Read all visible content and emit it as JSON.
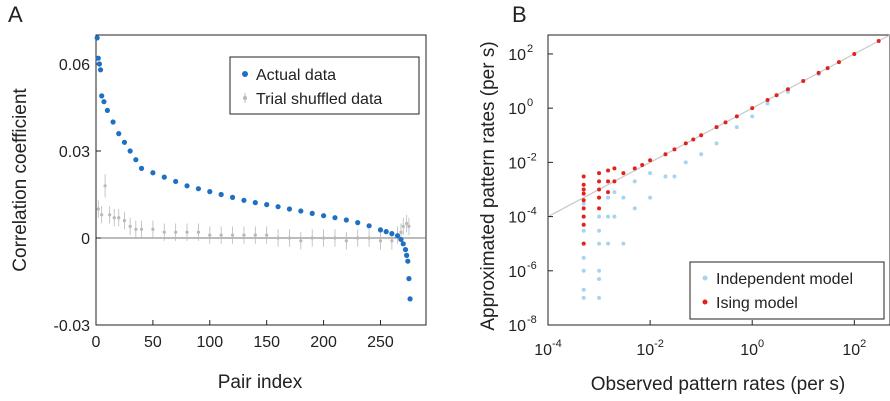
{
  "chart_data": [
    {
      "panel": "A",
      "type": "scatter",
      "xlabel": "Pair index",
      "ylabel": "Correlation coefficient",
      "xlim": [
        0,
        290
      ],
      "ylim": [
        -0.03,
        0.07
      ],
      "xticks": [
        0,
        50,
        100,
        150,
        200,
        250
      ],
      "yticks": [
        -0.03,
        0,
        0.03,
        0.06
      ],
      "ytick_labels": [
        "-0.03",
        "0",
        "0.03",
        "0.06"
      ],
      "xtick_labels": [
        "0",
        "50",
        "100",
        "150",
        "200",
        "250"
      ],
      "legend_position": "top-right",
      "series": [
        {
          "name": "Actual data",
          "color": "#1f6fc2",
          "x": [
            1,
            2,
            3,
            4,
            5,
            7,
            10,
            15,
            20,
            25,
            30,
            35,
            40,
            50,
            60,
            70,
            80,
            90,
            100,
            110,
            120,
            130,
            140,
            150,
            160,
            170,
            180,
            190,
            200,
            210,
            220,
            230,
            240,
            250,
            255,
            260,
            265,
            268,
            270,
            272,
            273,
            274,
            275,
            276
          ],
          "y": [
            0.069,
            0.062,
            0.06,
            0.058,
            0.049,
            0.047,
            0.044,
            0.04,
            0.036,
            0.033,
            0.03,
            0.027,
            0.024,
            0.0225,
            0.021,
            0.0195,
            0.018,
            0.017,
            0.016,
            0.015,
            0.014,
            0.013,
            0.0122,
            0.0115,
            0.0108,
            0.01,
            0.0093,
            0.0085,
            0.0077,
            0.007,
            0.0062,
            0.0053,
            0.0042,
            0.0028,
            0.0022,
            0.0015,
            0.0008,
            -0.0005,
            -0.002,
            -0.004,
            -0.006,
            -0.008,
            -0.014,
            -0.021
          ]
        },
        {
          "name": "Trial shuffled data",
          "color": "#b8b8b8",
          "x": [
            2,
            5,
            8,
            12,
            16,
            20,
            25,
            30,
            35,
            40,
            50,
            60,
            70,
            80,
            90,
            100,
            110,
            120,
            130,
            140,
            150,
            160,
            170,
            180,
            190,
            200,
            210,
            220,
            230,
            240,
            250,
            260,
            265,
            268,
            270,
            273,
            275
          ],
          "y": [
            0.01,
            0.008,
            0.018,
            0.008,
            0.007,
            0.007,
            0.006,
            0.004,
            0.003,
            0.003,
            0.003,
            0.002,
            0.002,
            0.002,
            0.002,
            0.001,
            0.001,
            0.001,
            0.001,
            0.001,
            0.001,
            0.0,
            0.0,
            -0.001,
            0.0,
            0.0,
            0.0,
            -0.001,
            0.0,
            0.0,
            -0.001,
            -0.001,
            0.001,
            0.002,
            0.004,
            0.005,
            0.004
          ],
          "err": [
            0.003,
            0.003,
            0.004,
            0.003,
            0.003,
            0.003,
            0.003,
            0.003,
            0.003,
            0.003,
            0.003,
            0.003,
            0.003,
            0.003,
            0.003,
            0.003,
            0.003,
            0.003,
            0.003,
            0.003,
            0.003,
            0.003,
            0.003,
            0.003,
            0.003,
            0.003,
            0.003,
            0.003,
            0.003,
            0.003,
            0.003,
            0.003,
            0.003,
            0.003,
            0.003,
            0.003,
            0.003
          ]
        }
      ]
    },
    {
      "panel": "B",
      "type": "scatter",
      "xlabel": "Observed pattern rates (per s)",
      "ylabel": "Approximated pattern rates (per s)",
      "xscale": "log",
      "yscale": "log",
      "xlim": [
        0.0001,
        500
      ],
      "ylim": [
        1e-08,
        500
      ],
      "xticks": [
        0.0001,
        0.01,
        1,
        100
      ],
      "yticks": [
        1e-08,
        1e-06,
        0.0001,
        0.01,
        1,
        100
      ],
      "tick_base": "10",
      "xtick_exponents": [
        "-4",
        "-2",
        "0",
        "2"
      ],
      "ytick_exponents": [
        "-8",
        "-6",
        "-4",
        "-2",
        "0",
        "2"
      ],
      "legend_position": "bottom-right",
      "reference_line": "y = x",
      "series": [
        {
          "name": "Independent model",
          "color": "#a8d4f0",
          "x": [
            0.0005,
            0.0005,
            0.0005,
            0.0005,
            0.0005,
            0.0005,
            0.0005,
            0.0005,
            0.0005,
            0.001,
            0.001,
            0.001,
            0.001,
            0.001,
            0.001,
            0.001,
            0.0015,
            0.0015,
            0.0015,
            0.002,
            0.002,
            0.003,
            0.003,
            0.005,
            0.005,
            0.01,
            0.01,
            0.02,
            0.03,
            0.05,
            0.1,
            0.2,
            0.5,
            1,
            2,
            5,
            20
          ],
          "y": [
            1e-07,
            1e-06,
            1e-05,
            5e-05,
            0.0001,
            0.0003,
            2e-07,
            3e-06,
            3e-05,
            1e-07,
            1e-06,
            1e-05,
            0.0001,
            0.0005,
            5e-07,
            3e-05,
            1e-05,
            0.0001,
            0.0005,
            0.0001,
            0.0008,
            1e-05,
            0.0005,
            0.0002,
            0.002,
            0.0005,
            0.004,
            0.003,
            0.003,
            0.01,
            0.02,
            0.05,
            0.2,
            0.5,
            1.5,
            4,
            18
          ]
        },
        {
          "name": "Ising model",
          "color": "#e0231b",
          "x": [
            0.0005,
            0.0005,
            0.0005,
            0.0005,
            0.0005,
            0.0005,
            0.0005,
            0.0005,
            0.0005,
            0.001,
            0.001,
            0.001,
            0.001,
            0.001,
            0.0015,
            0.0015,
            0.0015,
            0.002,
            0.002,
            0.003,
            0.005,
            0.007,
            0.01,
            0.02,
            0.03,
            0.05,
            0.07,
            0.1,
            0.2,
            0.3,
            0.5,
            1,
            2,
            3,
            5,
            10,
            20,
            30,
            50,
            100,
            300
          ],
          "y": [
            1e-05,
            5e-05,
            0.0001,
            0.0002,
            0.0004,
            0.0007,
            0.001,
            0.0015,
            0.003,
            0.0002,
            0.0005,
            0.001,
            0.002,
            0.004,
            0.0008,
            0.002,
            0.005,
            0.002,
            0.006,
            0.004,
            0.006,
            0.008,
            0.012,
            0.02,
            0.03,
            0.05,
            0.07,
            0.1,
            0.2,
            0.3,
            0.5,
            1,
            2,
            3,
            5,
            10,
            20,
            30,
            50,
            100,
            300
          ]
        }
      ]
    }
  ],
  "panels": {
    "a": {
      "letter": "A"
    },
    "b": {
      "letter": "B"
    }
  }
}
